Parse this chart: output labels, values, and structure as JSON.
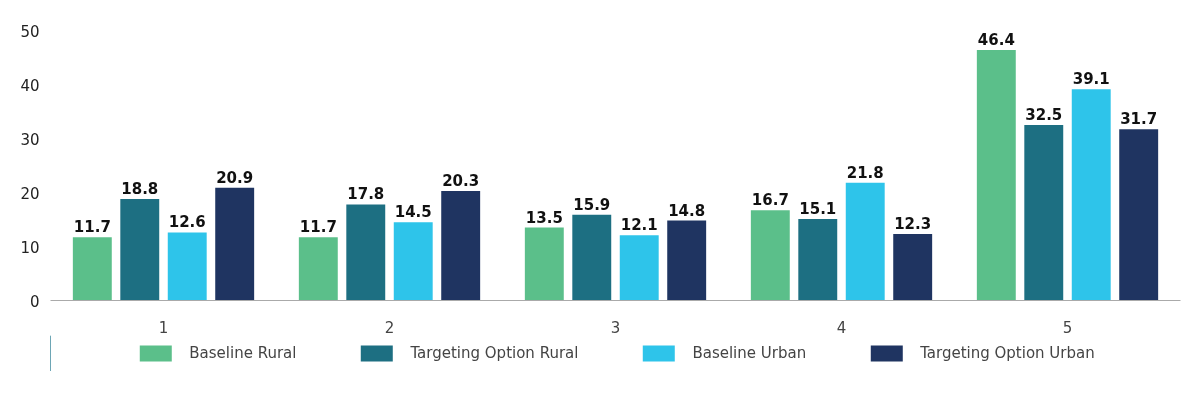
{
  "chart_data": {
    "type": "bar",
    "categories": [
      "1",
      "2",
      "3",
      "4",
      "5"
    ],
    "series": [
      {
        "name": "Baseline Rural",
        "color": "#5bbf8a",
        "values": [
          11.7,
          11.7,
          13.5,
          16.7,
          46.4
        ]
      },
      {
        "name": "Targeting Option Rural",
        "color": "#1d6f82",
        "values": [
          18.8,
          17.8,
          15.9,
          15.1,
          32.5
        ]
      },
      {
        "name": "Baseline Urban",
        "color": "#2ec4ea",
        "values": [
          12.6,
          14.5,
          12.1,
          21.8,
          39.1
        ]
      },
      {
        "name": "Targeting Option Urban",
        "color": "#1f3461",
        "values": [
          20.9,
          20.3,
          14.8,
          12.3,
          31.7
        ]
      }
    ],
    "ylim": [
      0,
      50
    ],
    "yticks": [
      0,
      10,
      20,
      30,
      40,
      50
    ],
    "grid": false,
    "legend": "bottom",
    "data_labels": true
  }
}
